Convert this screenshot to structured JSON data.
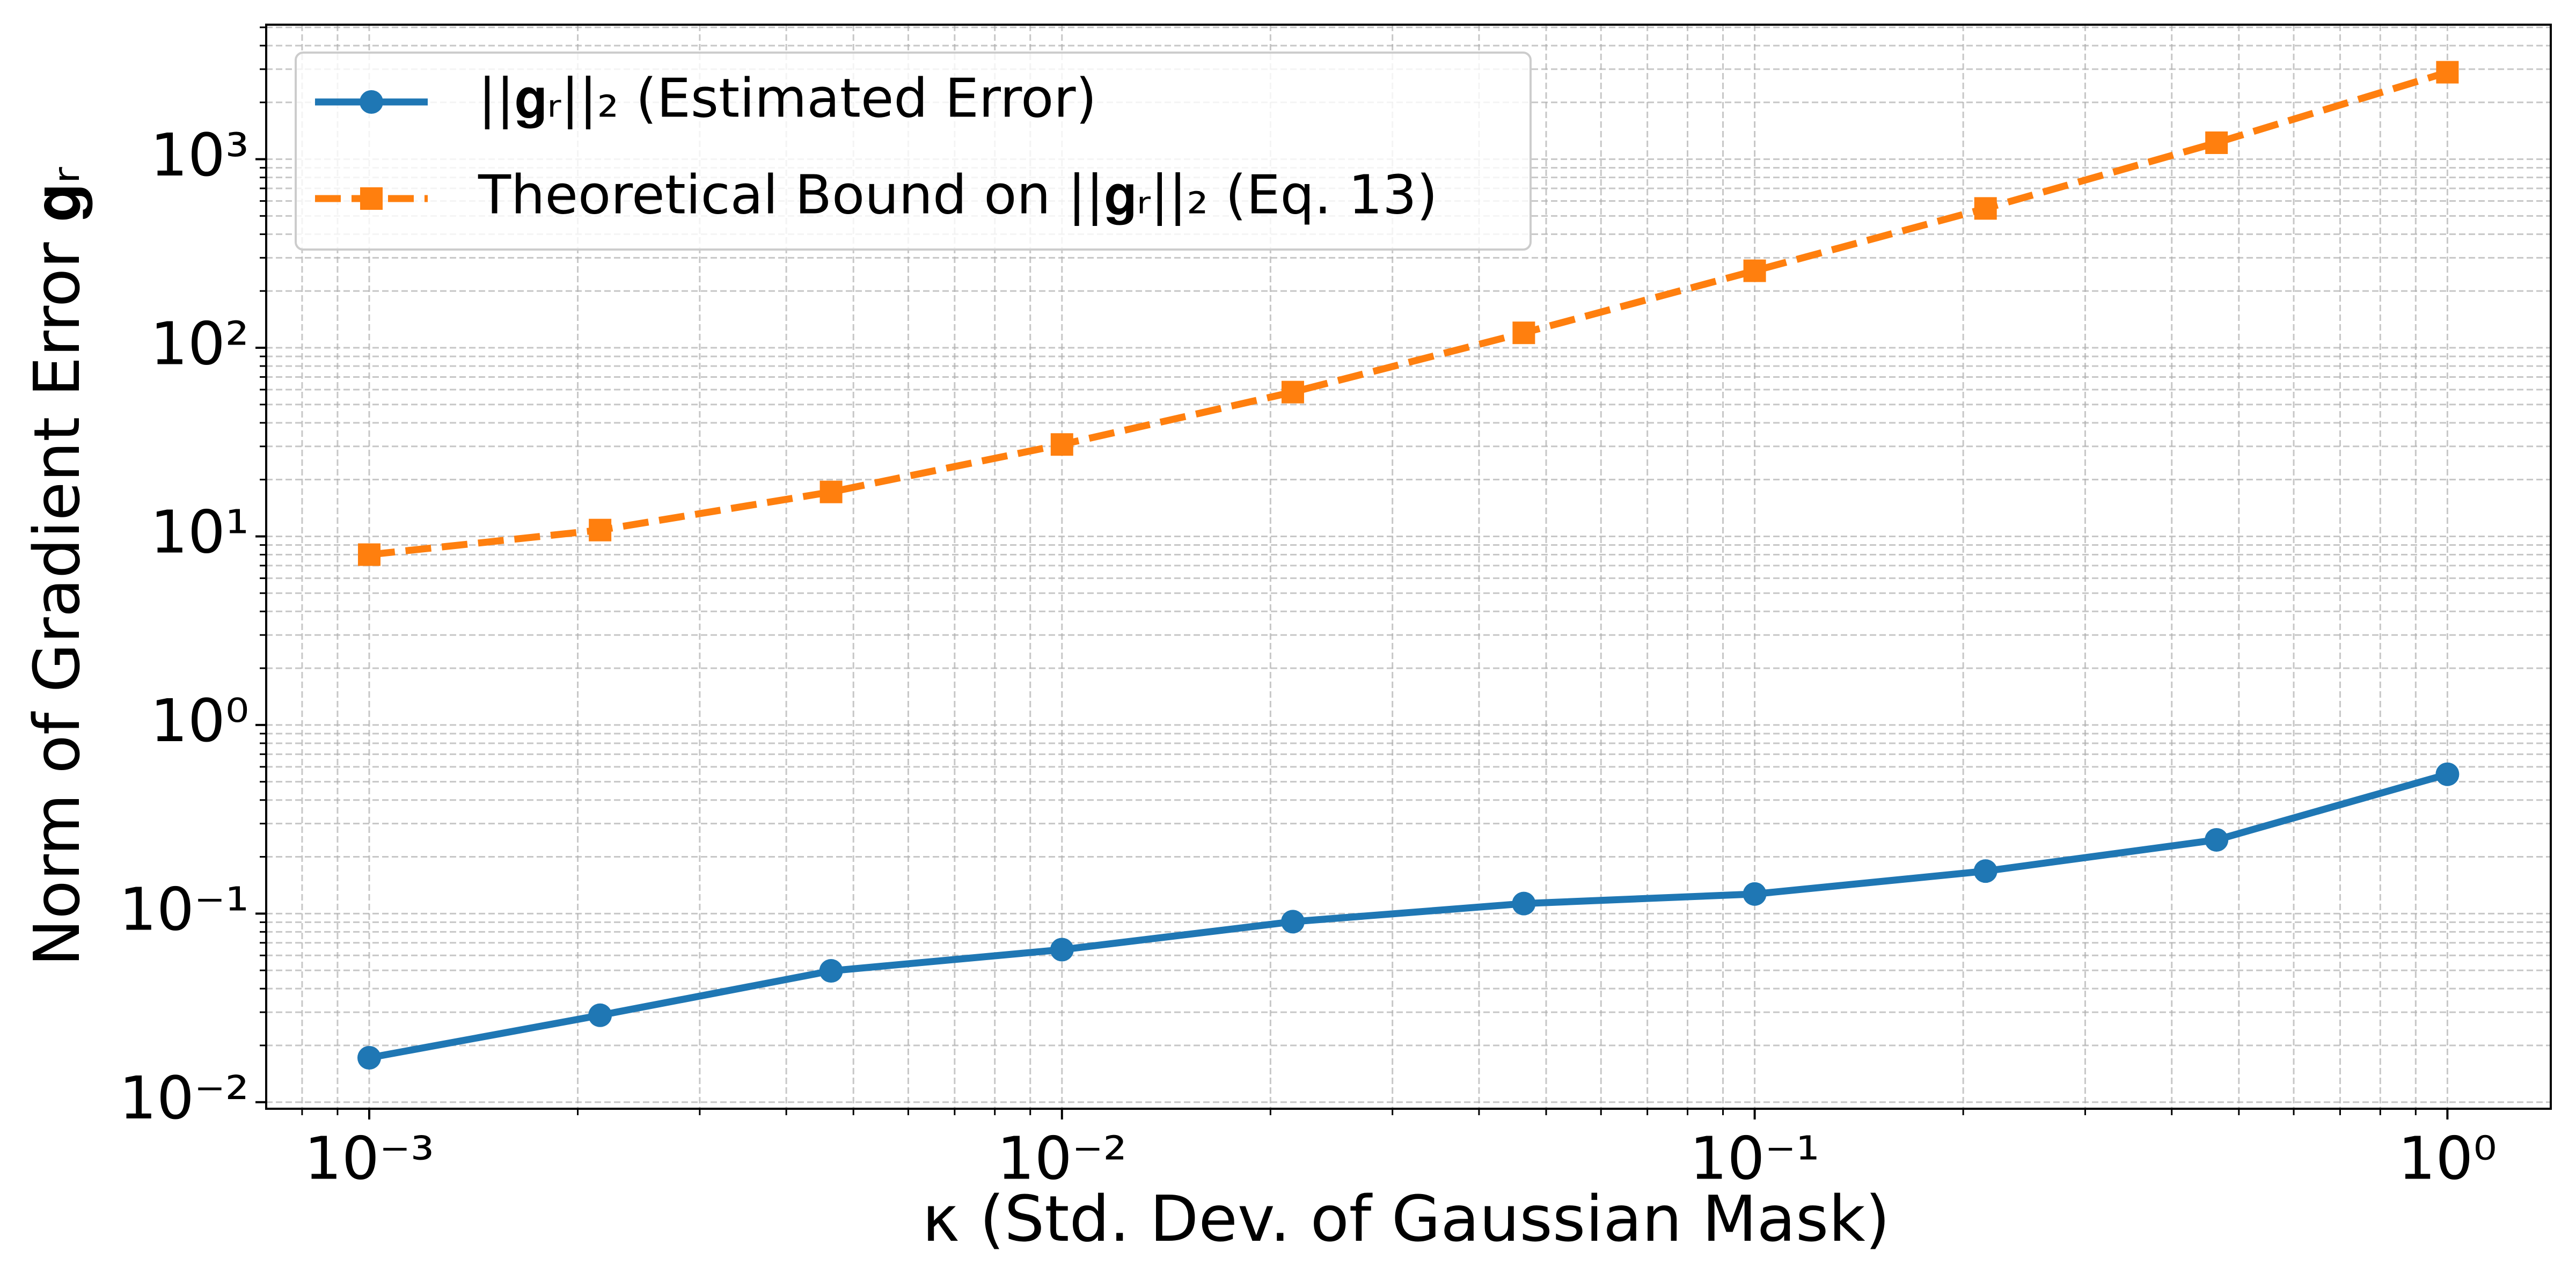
{
  "chart_data": {
    "type": "line",
    "x_label": "κ (Std. Dev. of Gaussian Mask)",
    "y_label": "Norm of Gradient Error 𝐠ᵣ",
    "x": [
      0.001,
      0.002154,
      0.004642,
      0.01,
      0.02154,
      0.04642,
      0.1,
      0.2154,
      0.4642,
      1
    ],
    "series": [
      {
        "name": "||𝐠ᵣ||₂ (Estimated Error)",
        "color": "#1f77b4",
        "marker": "circle",
        "dash": false,
        "values": [
          0.0172,
          0.0289,
          0.0497,
          0.0644,
          0.0906,
          0.113,
          0.127,
          0.168,
          0.246,
          0.548
        ]
      },
      {
        "name": "Theoretical Bound on ||𝐠ᵣ||₂ (Eq. 13)",
        "color": "#ff7f0e",
        "marker": "square",
        "dash": true,
        "values": [
          8.0,
          10.8,
          17.2,
          30.7,
          58.2,
          120,
          256,
          548,
          1222,
          2890
        ]
      }
    ],
    "xscale": "log",
    "yscale": "log",
    "xlim": [
      0.00071,
      1.41
    ],
    "ylim": [
      0.00923,
      5164
    ],
    "xticks": [
      {
        "value": 0.001,
        "label": "10⁻³"
      },
      {
        "value": 0.01,
        "label": "10⁻²"
      },
      {
        "value": 0.1,
        "label": "10⁻¹"
      },
      {
        "value": 1,
        "label": "10⁰"
      }
    ],
    "yticks": [
      {
        "value": 0.01,
        "label": "10⁻²"
      },
      {
        "value": 0.1,
        "label": "10⁻¹"
      },
      {
        "value": 1,
        "label": "10⁰"
      },
      {
        "value": 10,
        "label": "10¹"
      },
      {
        "value": 100,
        "label": "10²"
      },
      {
        "value": 1000,
        "label": "10³"
      }
    ],
    "xminorticks": [
      0.0008,
      0.0009,
      0.002,
      0.003,
      0.004,
      0.005,
      0.006,
      0.007,
      0.008,
      0.009,
      0.02,
      0.03,
      0.04,
      0.05,
      0.06,
      0.07,
      0.08,
      0.09,
      0.2,
      0.3,
      0.4,
      0.5,
      0.6,
      0.7,
      0.8,
      0.9
    ],
    "yminorticks": [
      0.02,
      0.03,
      0.04,
      0.05,
      0.06,
      0.07,
      0.08,
      0.09,
      0.2,
      0.3,
      0.4,
      0.5,
      0.6,
      0.7,
      0.8,
      0.9,
      2,
      3,
      4,
      5,
      6,
      7,
      8,
      9,
      20,
      30,
      40,
      50,
      60,
      70,
      80,
      90,
      200,
      300,
      400,
      500,
      600,
      700,
      800,
      900,
      2000,
      3000,
      4000,
      5000
    ],
    "grid": true,
    "legend": "upper left"
  }
}
